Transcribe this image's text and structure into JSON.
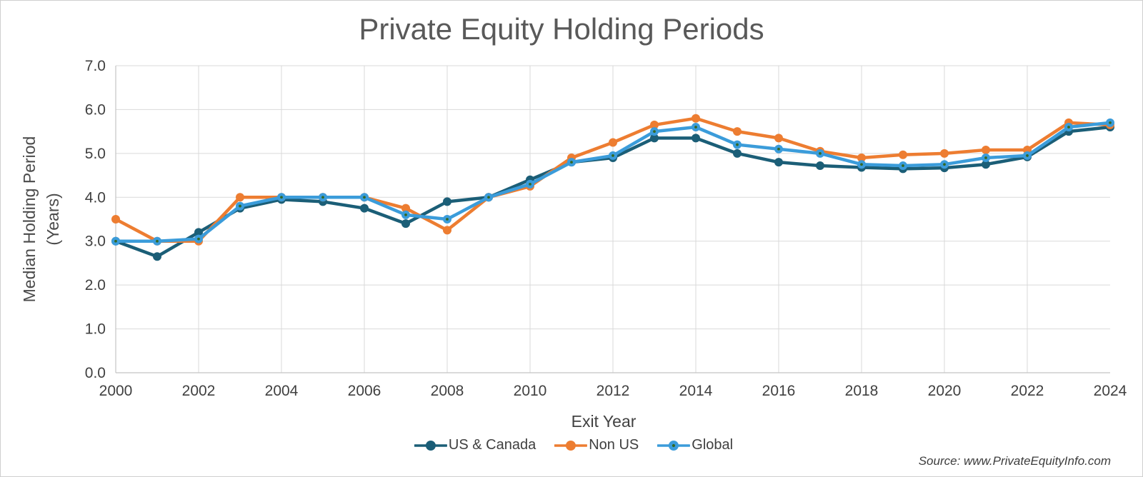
{
  "title": "Private Equity Holding Periods",
  "y_axis": {
    "title_line1": "Median Holding Period",
    "title_line2": "(Years)",
    "tick_labels": [
      "0.0",
      "1.0",
      "2.0",
      "3.0",
      "4.0",
      "5.0",
      "6.0",
      "7.0"
    ]
  },
  "x_axis": {
    "title": "Exit Year",
    "tick_labels": [
      2000,
      2002,
      2004,
      2006,
      2008,
      2010,
      2012,
      2014,
      2016,
      2018,
      2020,
      2022,
      2024
    ]
  },
  "source": "Source: www.PrivateEquityInfo.com",
  "colors": {
    "us_canada": "#1B5E77",
    "non_us": "#ED7D31",
    "global": "#3B9CDA",
    "global_marker_dot": "#346824",
    "gridline": "#D9D9D9",
    "axis_line": "#C4C4C4",
    "title_text": "#595959",
    "tick_text": "#404040"
  },
  "chart_data": {
    "type": "line",
    "title": "Private Equity Holding Periods",
    "xlabel": "Exit Year",
    "ylabel": "Median Holding Period (Years)",
    "ylim": [
      0.0,
      7.0
    ],
    "ytick_step": 1.0,
    "grid": true,
    "legend_position": "bottom",
    "x": [
      2000,
      2001,
      2002,
      2003,
      2004,
      2005,
      2006,
      2007,
      2008,
      2009,
      2010,
      2011,
      2012,
      2013,
      2014,
      2015,
      2016,
      2017,
      2018,
      2019,
      2020,
      2021,
      2022,
      2023,
      2024
    ],
    "series": [
      {
        "name": "US & Canada",
        "color": "#1B5E77",
        "values": [
          3.0,
          2.65,
          3.2,
          3.75,
          3.95,
          3.9,
          3.75,
          3.4,
          3.9,
          4.0,
          4.4,
          4.8,
          4.9,
          5.35,
          5.35,
          5.0,
          4.8,
          4.72,
          4.68,
          4.65,
          4.67,
          4.75,
          4.92,
          5.5,
          5.6
        ]
      },
      {
        "name": "Non US",
        "color": "#ED7D31",
        "values": [
          3.5,
          3.0,
          3.0,
          4.0,
          4.0,
          4.0,
          4.0,
          3.75,
          3.25,
          4.0,
          4.25,
          4.9,
          5.25,
          5.65,
          5.8,
          5.5,
          5.35,
          5.05,
          4.9,
          4.97,
          5.0,
          5.08,
          5.08,
          5.7,
          5.65
        ]
      },
      {
        "name": "Global",
        "color": "#3B9CDA",
        "center_dot": "#346824",
        "values": [
          3.0,
          3.0,
          3.05,
          3.8,
          4.0,
          4.0,
          4.0,
          3.6,
          3.5,
          4.0,
          4.3,
          4.8,
          4.95,
          5.5,
          5.6,
          5.2,
          5.1,
          5.0,
          4.75,
          4.72,
          4.75,
          4.9,
          4.95,
          5.6,
          5.7
        ]
      }
    ]
  }
}
